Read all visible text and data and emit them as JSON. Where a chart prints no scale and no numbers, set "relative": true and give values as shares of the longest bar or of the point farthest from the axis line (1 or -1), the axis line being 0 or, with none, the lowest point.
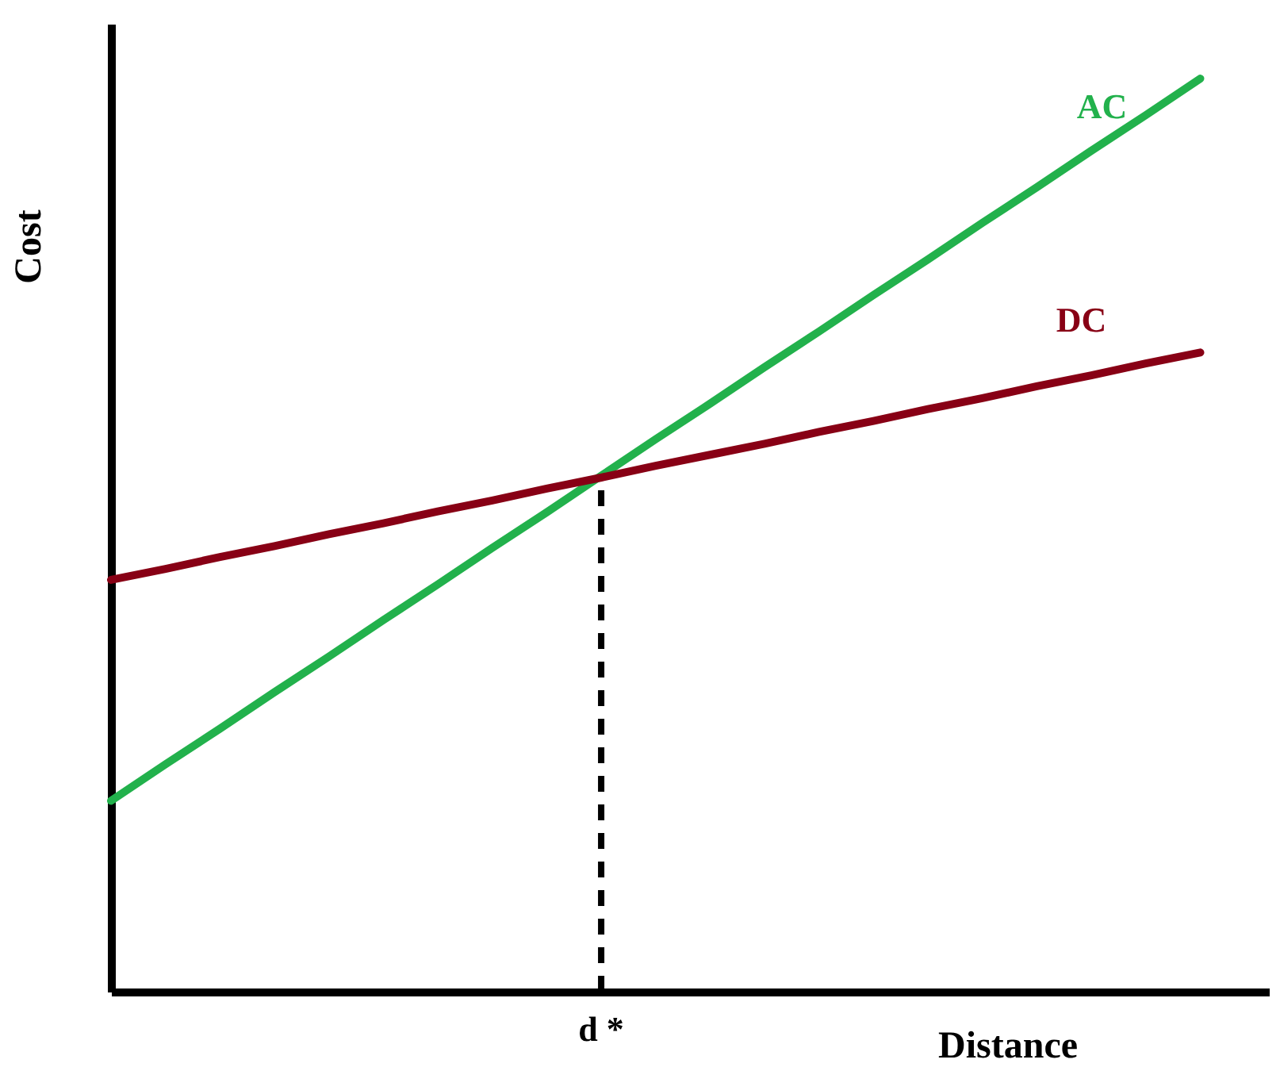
{
  "chart_data": {
    "type": "line",
    "relative": true,
    "xlabel": "Distance",
    "ylabel": "Cost",
    "annotations": [
      "d *"
    ],
    "grid": false,
    "line_style": "solid",
    "marker": "none",
    "categories": [
      null,
      null,
      null,
      null,
      null,
      null,
      null,
      null,
      null,
      null,
      null,
      null,
      null,
      null,
      null,
      null,
      null,
      null,
      null,
      null,
      null
    ],
    "series": [
      {
        "name": "AC",
        "color": "#22b14c",
        "values": [
          0.209,
          0.249,
          0.288,
          0.328,
          0.367,
          0.407,
          0.446,
          0.486,
          0.525,
          0.565,
          0.605,
          0.644,
          0.684,
          0.723,
          0.763,
          0.802,
          0.842,
          0.881,
          0.921,
          0.96,
          1
        ]
      },
      {
        "name": "DC",
        "color": "#880015",
        "values": [
          0.451,
          0.463,
          0.476,
          0.488,
          0.501,
          0.513,
          0.526,
          0.538,
          0.551,
          0.563,
          0.576,
          0.588,
          0.6,
          0.613,
          0.625,
          0.638,
          0.65,
          0.663,
          0.675,
          0.688,
          0.7
        ]
      }
    ]
  }
}
